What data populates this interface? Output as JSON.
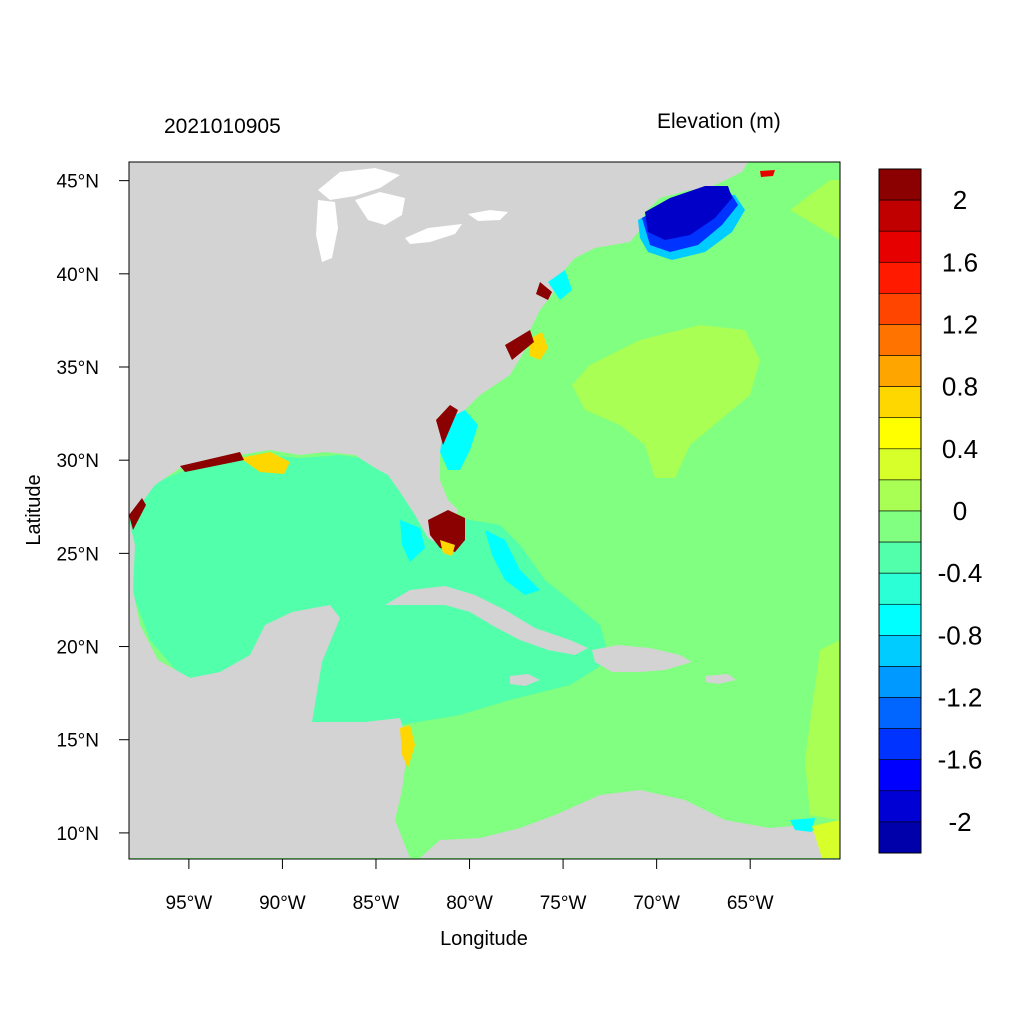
{
  "map": {
    "date_label": "2021010905",
    "variable_label": "Elevation (m)",
    "xlabel": "Longitude",
    "ylabel": "Latitude",
    "lon_range": [
      -98.2,
      -60.2
    ],
    "lat_range": [
      8.6,
      46.0
    ],
    "lon_ticks": [
      {
        "value": -95,
        "label": "95°W"
      },
      {
        "value": -90,
        "label": "90°W"
      },
      {
        "value": -85,
        "label": "85°W"
      },
      {
        "value": -80,
        "label": "80°W"
      },
      {
        "value": -75,
        "label": "75°W"
      },
      {
        "value": -70,
        "label": "70°W"
      },
      {
        "value": -65,
        "label": "65°W"
      }
    ],
    "lat_ticks": [
      {
        "value": 45,
        "label": "45°N"
      },
      {
        "value": 40,
        "label": "40°N"
      },
      {
        "value": 35,
        "label": "35°N"
      },
      {
        "value": 30,
        "label": "30°N"
      },
      {
        "value": 25,
        "label": "25°N"
      },
      {
        "value": 20,
        "label": "20°N"
      },
      {
        "value": 15,
        "label": "15°N"
      },
      {
        "value": 10,
        "label": "10°N"
      }
    ],
    "colors": {
      "land": "#d3d3d3",
      "open_ocean": "#80ff80",
      "gulf_caribbean": "#52ffaa",
      "raised_area": "#aaff55",
      "low_area": "#0000c8",
      "surge_area": "#8b0000"
    }
  },
  "colorbar": {
    "colors": [
      "#8b0000",
      "#c00000",
      "#e60000",
      "#ff1a00",
      "#ff4500",
      "#ff7300",
      "#ffa500",
      "#ffd700",
      "#ffff00",
      "#d7ff2a",
      "#aaff55",
      "#80ff80",
      "#52ffaa",
      "#2affd5",
      "#00ffff",
      "#00ccff",
      "#0099ff",
      "#0066ff",
      "#0033ff",
      "#0000ff",
      "#0000d5",
      "#0000aa"
    ],
    "tick_labels": [
      "2",
      "1.6",
      "1.2",
      "0.8",
      "0.4",
      "0",
      "-0.4",
      "-0.8",
      "-1.2",
      "-1.6",
      "-2"
    ]
  }
}
